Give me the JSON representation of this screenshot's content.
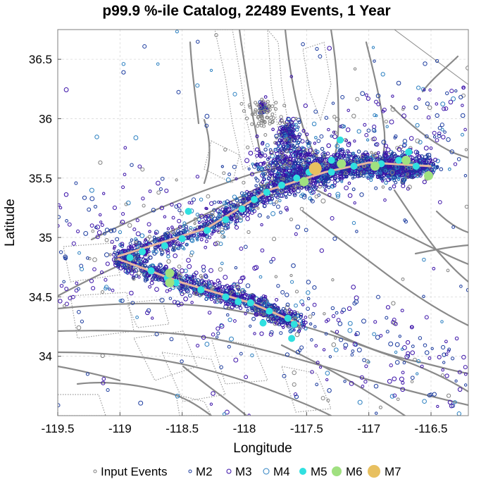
{
  "chart_data": {
    "type": "scatter",
    "title": "p99.9 %-ile Catalog, 22489 Events, 1 Year",
    "xlabel": "Longitude",
    "ylabel": "Latitude",
    "xlim": [
      -119.5,
      -116.2
    ],
    "ylim": [
      33.5,
      36.75
    ],
    "x_ticks": [
      -119.5,
      -119,
      -118.5,
      -118,
      -117.5,
      -117,
      -116.5
    ],
    "x_tick_labels": [
      "-119.5",
      "-119",
      "-118.5",
      "-118",
      "-117.5",
      "-117",
      "-116.5"
    ],
    "y_ticks": [
      34,
      34.5,
      35,
      35.5,
      36,
      36.5
    ],
    "y_tick_labels": [
      "34",
      "34.5",
      "35",
      "35.5",
      "36",
      "36.5"
    ],
    "grid": true,
    "rupture_trace": [
      [
        -119.02,
        34.84
      ],
      [
        -118.3,
        35.08
      ],
      [
        -117.8,
        35.4
      ],
      [
        -117.35,
        35.55
      ],
      [
        -117.0,
        35.63
      ],
      [
        -116.5,
        35.6
      ]
    ],
    "rupture_trace_branch": [
      [
        -119.02,
        34.82
      ],
      [
        -118.5,
        34.62
      ],
      [
        -117.95,
        34.45
      ],
      [
        -117.55,
        34.27
      ]
    ],
    "trace_color": "#e8b6a0",
    "legend_position": "bottom",
    "legend": [
      {
        "label": "Input Events",
        "marker": "open-circle",
        "color": "#808080"
      },
      {
        "label": "M2",
        "marker": "open-circle",
        "color": "#1a3a9e"
      },
      {
        "label": "M3",
        "marker": "open-circle",
        "color": "#3a10a8"
      },
      {
        "label": "M4",
        "marker": "open-circle",
        "color": "#2a7fc0"
      },
      {
        "label": "M5",
        "marker": "filled-circle",
        "color": "#30e0e0"
      },
      {
        "label": "M6",
        "marker": "filled-circle",
        "color": "#a0e080"
      },
      {
        "label": "M7",
        "marker": "filled-circle",
        "color": "#e8c060"
      }
    ],
    "series": [
      {
        "name": "M5",
        "points": [
          [
            -118.92,
            34.83
          ],
          [
            -118.82,
            34.88
          ],
          [
            -118.64,
            34.93
          ],
          [
            -118.5,
            34.99
          ],
          [
            -118.3,
            35.06
          ],
          [
            -118.15,
            35.15
          ],
          [
            -118.02,
            35.24
          ],
          [
            -117.92,
            35.32
          ],
          [
            -117.82,
            35.38
          ],
          [
            -117.7,
            35.44
          ],
          [
            -117.58,
            35.5
          ],
          [
            -117.48,
            35.55
          ],
          [
            -117.3,
            35.55
          ],
          [
            -117.12,
            35.6
          ],
          [
            -116.9,
            35.62
          ],
          [
            -116.76,
            35.65
          ],
          [
            -116.62,
            35.6
          ],
          [
            -116.68,
            35.72
          ],
          [
            -117.23,
            35.82
          ],
          [
            -117.3,
            35.65
          ],
          [
            -118.45,
            35.22
          ],
          [
            -118.55,
            34.62
          ],
          [
            -118.35,
            34.56
          ],
          [
            -118.15,
            34.5
          ],
          [
            -117.95,
            34.45
          ],
          [
            -117.8,
            34.38
          ],
          [
            -117.65,
            34.32
          ],
          [
            -117.6,
            34.27
          ],
          [
            -117.85,
            34.28
          ],
          [
            -117.62,
            34.15
          ],
          [
            -118.75,
            34.72
          ],
          [
            -118.62,
            34.66
          ],
          [
            -118.05,
            34.46
          ]
        ]
      },
      {
        "name": "M6",
        "points": [
          [
            -118.6,
            34.7
          ],
          [
            -118.6,
            34.62
          ],
          [
            -117.22,
            35.62
          ],
          [
            -116.95,
            35.6
          ],
          [
            -116.7,
            35.65
          ],
          [
            -116.52,
            35.52
          ],
          [
            -117.52,
            35.47
          ]
        ]
      },
      {
        "name": "M7",
        "points": [
          [
            -117.43,
            35.58
          ]
        ]
      }
    ],
    "background_clusters": [
      {
        "center": [
          -117.55,
          35.6
        ],
        "spread": [
          0.35,
          0.18
        ],
        "count": 520
      },
      {
        "center": [
          -116.8,
          35.58
        ],
        "spread": [
          0.3,
          0.1
        ],
        "count": 420
      },
      {
        "center": [
          -117.65,
          35.85
        ],
        "spread": [
          0.08,
          0.12
        ],
        "count": 160
      },
      {
        "center": [
          -117.85,
          36.1
        ],
        "spread": [
          0.04,
          0.06
        ],
        "count": 40
      }
    ],
    "scatter_cloud": {
      "count": 1700,
      "seed": 7
    }
  }
}
